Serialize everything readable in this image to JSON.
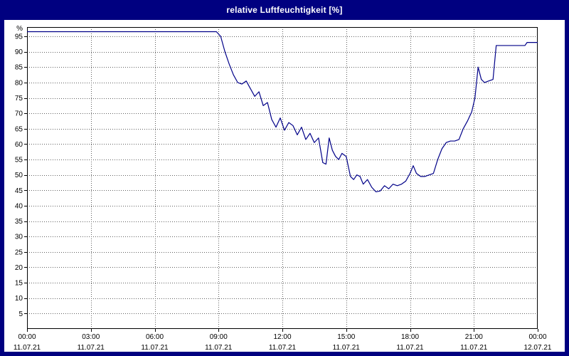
{
  "title": "relative Luftfeuchtigkeit [%]",
  "colors": {
    "background": "#000080",
    "title_text": "#ffffff",
    "plot_bg": "#ffffff",
    "line": "#000088",
    "grid": "#606060",
    "axis": "#000000",
    "label": "#000000"
  },
  "chart_data": {
    "type": "line",
    "title": "relative Luftfeuchtigkeit [%]",
    "xlabel": "",
    "ylabel": "%",
    "unit_label": "%",
    "ylim": [
      0,
      98
    ],
    "xlim_hours": [
      0,
      24
    ],
    "grid": true,
    "y_ticks": [
      5,
      10,
      15,
      20,
      25,
      30,
      35,
      40,
      45,
      50,
      55,
      60,
      65,
      70,
      75,
      80,
      85,
      90,
      95
    ],
    "x_ticks": [
      {
        "hour": 0,
        "time": "00:00",
        "date": "11.07.21"
      },
      {
        "hour": 3,
        "time": "03:00",
        "date": "11.07.21"
      },
      {
        "hour": 6,
        "time": "06:00",
        "date": "11.07.21"
      },
      {
        "hour": 9,
        "time": "09:00",
        "date": "11.07.21"
      },
      {
        "hour": 12,
        "time": "12:00",
        "date": "11.07.21"
      },
      {
        "hour": 15,
        "time": "15:00",
        "date": "11.07.21"
      },
      {
        "hour": 18,
        "time": "18:00",
        "date": "11.07.21"
      },
      {
        "hour": 21,
        "time": "21:00",
        "date": "11.07.21"
      },
      {
        "hour": 24,
        "time": "00:00",
        "date": "12.07.21"
      }
    ],
    "series": [
      {
        "name": "relative Luftfeuchtigkeit",
        "x": [
          0,
          2,
          4,
          6,
          8,
          8.9,
          9.1,
          9.3,
          9.5,
          9.7,
          9.9,
          10.1,
          10.3,
          10.5,
          10.7,
          10.9,
          11.1,
          11.3,
          11.5,
          11.7,
          11.9,
          12.1,
          12.3,
          12.5,
          12.7,
          12.9,
          13.1,
          13.3,
          13.5,
          13.7,
          13.9,
          14.05,
          14.2,
          14.35,
          14.5,
          14.65,
          14.8,
          15.0,
          15.2,
          15.35,
          15.5,
          15.65,
          15.8,
          16.0,
          16.2,
          16.4,
          16.6,
          16.8,
          17.0,
          17.2,
          17.4,
          17.6,
          17.8,
          18.0,
          18.15,
          18.3,
          18.5,
          18.7,
          18.9,
          19.1,
          19.3,
          19.5,
          19.7,
          19.9,
          20.1,
          20.3,
          20.5,
          20.7,
          20.9,
          21.05,
          21.2,
          21.35,
          21.5,
          21.7,
          21.9,
          22.05,
          22.5,
          23.0,
          23.4,
          23.5,
          24.0
        ],
        "y": [
          96.5,
          96.5,
          96.5,
          96.5,
          96.5,
          96.5,
          95,
          90,
          86,
          82.5,
          80,
          79.5,
          80.5,
          78,
          75.5,
          77,
          72.5,
          73.5,
          68,
          65.5,
          68.5,
          64.5,
          67,
          66,
          63,
          65.5,
          61.5,
          63.5,
          60.5,
          62,
          54,
          53.5,
          62,
          58,
          56,
          55,
          57,
          56,
          49.5,
          48.5,
          50,
          49.5,
          47,
          48.5,
          46,
          44.5,
          44.8,
          46.5,
          45.5,
          47,
          46.5,
          47,
          48,
          50.5,
          53,
          50.5,
          49.5,
          49.5,
          50,
          50.5,
          55,
          58.5,
          60.5,
          61,
          61,
          61.5,
          65,
          67.5,
          70.5,
          75,
          85,
          81,
          80,
          80.5,
          81,
          92,
          92,
          92,
          92,
          93,
          93
        ]
      }
    ]
  }
}
